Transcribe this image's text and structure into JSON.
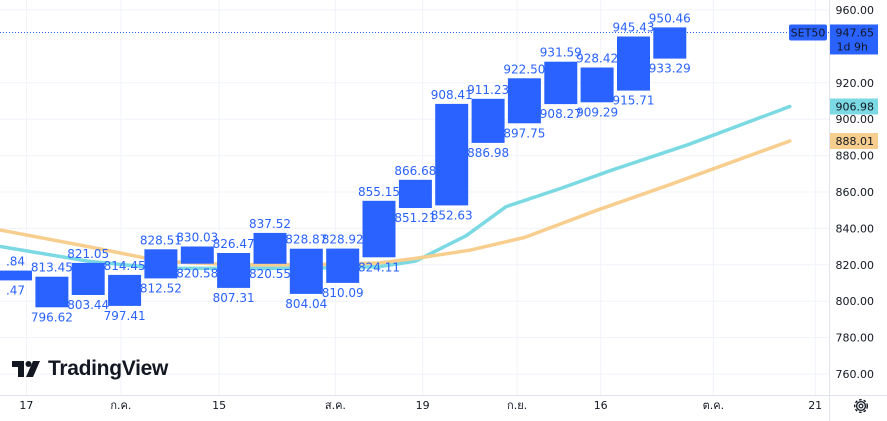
{
  "chart_data": {
    "type": "candlestick",
    "ylim": [
      750,
      965
    ],
    "y_ticks": [
      "960.00",
      "920.00",
      "900.00",
      "880.00",
      "860.00",
      "840.00",
      "820.00",
      "800.00",
      "780.00",
      "760.00"
    ],
    "x_ticks": [
      {
        "label": "17",
        "index": 0.3
      },
      {
        "label": "ก.ค.",
        "index": 2.9
      },
      {
        "label": "15",
        "index": 5.6
      },
      {
        "label": "ส.ค.",
        "index": 8.8
      },
      {
        "label": "19",
        "index": 11.2
      },
      {
        "label": "ก.ย.",
        "index": 13.8
      },
      {
        "label": "16",
        "index": 16.1
      },
      {
        "label": "ต.ค.",
        "index": 19.2
      },
      {
        "label": "21",
        "index": 22.0
      }
    ],
    "candles": [
      {
        "high_label": ".84",
        "low_label": ".47",
        "open": 816.84,
        "close": 811.47
      },
      {
        "high_label": "813.45",
        "low_label": "796.62",
        "open": 813.45,
        "close": 796.62
      },
      {
        "high_label": "821.05",
        "low_label": "803.44",
        "open": 803.44,
        "close": 821.05
      },
      {
        "high_label": "814.45",
        "low_label": "797.41",
        "open": 814.45,
        "close": 797.41
      },
      {
        "high_label": "828.51",
        "low_label": "812.52",
        "open": 812.52,
        "close": 828.51
      },
      {
        "high_label": "830.03",
        "low_label": "820.58",
        "open": 820.58,
        "close": 830.03
      },
      {
        "high_label": "826.47",
        "low_label": "807.31",
        "open": 826.47,
        "close": 807.31
      },
      {
        "high_label": "837.52",
        "low_label": "820.55",
        "open": 820.55,
        "close": 837.52
      },
      {
        "high_label": "828.87",
        "low_label": "804.04",
        "open": 828.87,
        "close": 804.04
      },
      {
        "high_label": "828.92",
        "low_label": "810.09",
        "open": 810.09,
        "close": 828.92
      },
      {
        "high_label": "855.15",
        "low_label": "824.11",
        "open": 824.11,
        "close": 855.15
      },
      {
        "high_label": "866.68",
        "low_label": "851.21",
        "open": 851.21,
        "close": 866.68
      },
      {
        "high_label": "908.41",
        "low_label": "852.63",
        "open": 852.63,
        "close": 908.41
      },
      {
        "high_label": "911.23",
        "low_label": "886.98",
        "open": 886.98,
        "close": 911.23
      },
      {
        "high_label": "922.50",
        "low_label": "897.75",
        "open": 897.75,
        "close": 922.5
      },
      {
        "high_label": "931.59",
        "low_label": "908.27",
        "open": 908.27,
        "close": 931.59
      },
      {
        "high_label": "928.42",
        "low_label": "909.29",
        "open": 909.29,
        "close": 928.42
      },
      {
        "high_label": "945.43",
        "low_label": "915.71",
        "open": 915.71,
        "close": 945.43
      },
      {
        "high_label": "950.46",
        "low_label": "933.29",
        "open": 933.29,
        "close": 950.46
      }
    ],
    "moving_averages": [
      {
        "color": "#7ad9e2",
        "last_label": "906.98",
        "points": [
          [
            -0.4,
            830
          ],
          [
            2,
            822
          ],
          [
            4,
            818
          ],
          [
            6,
            818
          ],
          [
            8,
            818
          ],
          [
            10,
            819
          ],
          [
            11,
            822
          ],
          [
            12.4,
            836
          ],
          [
            13.5,
            852
          ],
          [
            15,
            862
          ],
          [
            16.4,
            872
          ],
          [
            18.5,
            886
          ],
          [
            21.3,
            906.98
          ]
        ]
      },
      {
        "color": "#f8ce8f",
        "last_label": "888.01",
        "points": [
          [
            -0.4,
            839
          ],
          [
            2,
            830
          ],
          [
            4,
            822
          ],
          [
            6,
            820
          ],
          [
            8,
            820
          ],
          [
            10,
            821
          ],
          [
            11,
            823.5
          ],
          [
            12.5,
            828
          ],
          [
            14,
            835
          ],
          [
            16,
            850
          ],
          [
            18,
            864
          ],
          [
            21.3,
            888.01
          ]
        ]
      }
    ],
    "last_price": {
      "symbol": "SET50",
      "value": "947.65",
      "countdown": "1d 9h",
      "level": 947.65
    }
  },
  "branding": {
    "logo_text": "TradingView"
  },
  "colors": {
    "candle": "#2962ff",
    "label": "#2962ff",
    "cyan": "#7ad9e2",
    "orange": "#f8ce8f"
  }
}
